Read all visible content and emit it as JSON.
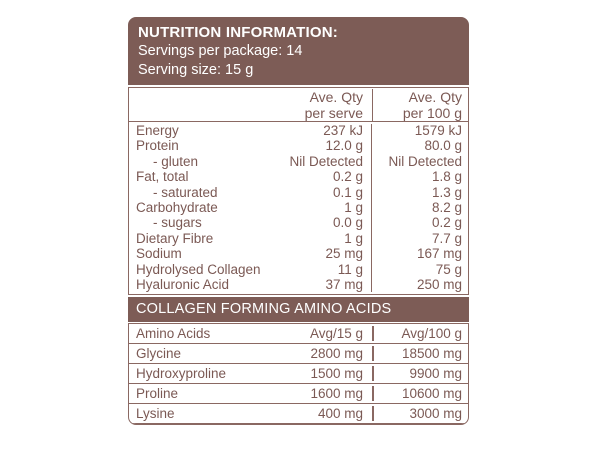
{
  "panel": {
    "colors": {
      "brown": "#7d5c56",
      "text": "#7b5954",
      "border": "#8a6862",
      "background": "#ffffff"
    },
    "header": {
      "title": "NUTRITION INFORMATION:",
      "servings_per_package": "Servings per package: 14",
      "serving_size": "Serving size: 15 g"
    },
    "columns": {
      "per_serve_line1": "Ave. Qty",
      "per_serve_line2": "per serve",
      "per_100g_line1": "Ave. Qty",
      "per_100g_line2": "per 100 g"
    },
    "rows": [
      {
        "label": "Energy",
        "per_serve": "237 kJ",
        "per_100g": "1579 kJ"
      },
      {
        "label": "Protein",
        "per_serve": "12.0 g",
        "per_100g": "80.0 g"
      },
      {
        "label": "- gluten",
        "per_serve": "Nil Detected",
        "per_100g": "Nil Detected",
        "indent": true
      },
      {
        "label": "Fat, total",
        "per_serve": "0.2 g",
        "per_100g": "1.8 g"
      },
      {
        "label": "- saturated",
        "per_serve": "0.1 g",
        "per_100g": "1.3 g",
        "indent": true
      },
      {
        "label": "Carbohydrate",
        "per_serve": "1 g",
        "per_100g": "8.2 g"
      },
      {
        "label": "- sugars",
        "per_serve": "0.0 g",
        "per_100g": "0.2 g",
        "indent": true
      },
      {
        "label": "Dietary Fibre",
        "per_serve": "1 g",
        "per_100g": "7.7 g"
      },
      {
        "label": "Sodium",
        "per_serve": "25 mg",
        "per_100g": "167 mg"
      },
      {
        "label": "Hydrolysed Collagen",
        "per_serve": "11 g",
        "per_100g": "75 g"
      },
      {
        "label": "Hyaluronic Acid",
        "per_serve": "37 mg",
        "per_100g": "250 mg"
      }
    ],
    "amino_section": {
      "title": "COLLAGEN FORMING AMINO ACIDS",
      "columns": {
        "label": "Amino Acids",
        "per_15g": "Avg/15 g",
        "per_100g": "Avg/100 g"
      },
      "rows": [
        {
          "label": "Glycine",
          "per_15g": "2800 mg",
          "per_100g": "18500 mg"
        },
        {
          "label": "Hydroxyproline",
          "per_15g": "1500 mg",
          "per_100g": "9900 mg"
        },
        {
          "label": "Proline",
          "per_15g": "1600 mg",
          "per_100g": "10600 mg"
        },
        {
          "label": "Lysine",
          "per_15g": "400 mg",
          "per_100g": "3000 mg"
        }
      ]
    }
  }
}
